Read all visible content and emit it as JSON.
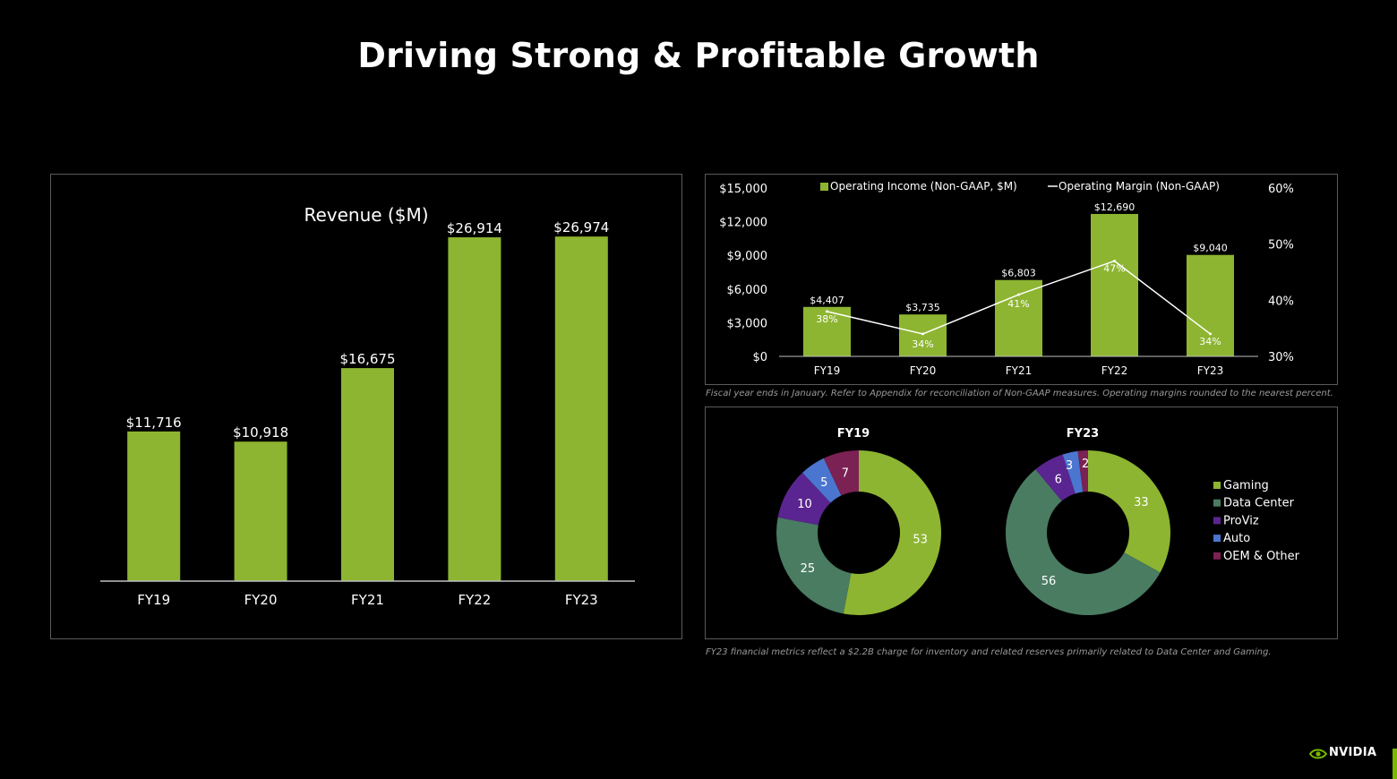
{
  "slide": {
    "title": "Driving Strong & Profitable Growth",
    "footnote_top": "Fiscal year ends in January. Refer to Appendix for reconciliation of Non-GAAP measures. Operating margins rounded to the nearest percent.",
    "footnote_bottom": "FY23 financial metrics reflect a $2.2B charge for inventory and related reserves primarily related to Data Center and Gaming.",
    "logo_text": "NVIDIA"
  },
  "colors": {
    "accent_green": "#8db531",
    "background": "#000000",
    "panel_border": "#5a5a5a",
    "gaming": "#8db531",
    "data_center": "#4a7c62",
    "proviz": "#5a2590",
    "auto": "#4b76cf",
    "oem_other": "#7b2153"
  },
  "chart_data": [
    {
      "type": "bar",
      "title": "Revenue ($M)",
      "categories": [
        "FY19",
        "FY20",
        "FY21",
        "FY22",
        "FY23"
      ],
      "values": [
        11716,
        10918,
        16675,
        26914,
        26974
      ],
      "value_labels": [
        "$11,716",
        "$10,918",
        "$16,675",
        "$26,914",
        "$26,974"
      ],
      "ylim": [
        0,
        30000
      ],
      "grid": false
    },
    {
      "type": "bar",
      "categories": [
        "FY19",
        "FY20",
        "FY21",
        "FY22",
        "FY23"
      ],
      "series": [
        {
          "name": "Operating Income (Non-GAAP, $M)",
          "type": "bar",
          "axis": "left",
          "values": [
            4407,
            3735,
            6803,
            12690,
            9040
          ],
          "value_labels": [
            "$4,407",
            "$3,735",
            "$6,803",
            "$12,690",
            "$9,040"
          ]
        },
        {
          "name": "Operating Margin (Non-GAAP)",
          "type": "line",
          "axis": "right",
          "values": [
            38,
            34,
            41,
            47,
            34
          ],
          "value_labels": [
            "38%",
            "34%",
            "41%",
            "47%",
            "34%"
          ]
        }
      ],
      "y_left": {
        "ylim": [
          0,
          15000
        ],
        "ticks": [
          "$0",
          "$3,000",
          "$6,000",
          "$9,000",
          "$12,000",
          "$15,000"
        ]
      },
      "y_right": {
        "ylim": [
          30,
          60
        ],
        "ticks": [
          "30%",
          "40%",
          "50%",
          "60%"
        ]
      },
      "legend": "top-center",
      "grid": false
    },
    {
      "type": "pie",
      "title": "FY19",
      "labels": [
        "Gaming",
        "Data Center",
        "ProViz",
        "Auto",
        "OEM & Other"
      ],
      "values": [
        53,
        25,
        10,
        5,
        7
      ]
    },
    {
      "type": "pie",
      "title": "FY23",
      "labels": [
        "Gaming",
        "Data Center",
        "ProViz",
        "Auto",
        "OEM & Other"
      ],
      "values": [
        33,
        56,
        6,
        3,
        2
      ]
    }
  ],
  "pie_legend": {
    "items": [
      {
        "label": "Gaming",
        "color": "#8db531"
      },
      {
        "label": "Data Center",
        "color": "#4a7c62"
      },
      {
        "label": "ProViz",
        "color": "#5a2590"
      },
      {
        "label": "Auto",
        "color": "#4b76cf"
      },
      {
        "label": "OEM & Other",
        "color": "#7b2153"
      }
    ]
  }
}
